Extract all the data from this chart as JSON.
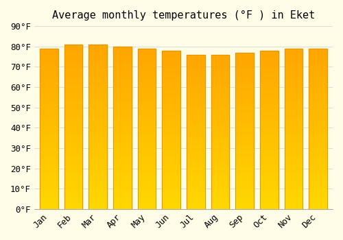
{
  "title": "Average monthly temperatures (°F ) in Eket",
  "months": [
    "Jan",
    "Feb",
    "Mar",
    "Apr",
    "May",
    "Jun",
    "Jul",
    "Aug",
    "Sep",
    "Oct",
    "Nov",
    "Dec"
  ],
  "values": [
    79,
    81,
    81,
    80,
    79,
    78,
    76,
    76,
    77,
    78,
    79,
    79
  ],
  "ylim": [
    0,
    90
  ],
  "yticks": [
    0,
    10,
    20,
    30,
    40,
    50,
    60,
    70,
    80,
    90
  ],
  "ytick_labels": [
    "0°F",
    "10°F",
    "20°F",
    "30°F",
    "40°F",
    "50°F",
    "60°F",
    "70°F",
    "80°F",
    "90°F"
  ],
  "bar_color_top": "#FFA500",
  "bar_color_bottom": "#FFD700",
  "bar_edge_color": "#E69500",
  "background_color": "#FFFDE7",
  "grid_color": "#DDDDDD",
  "title_fontsize": 11,
  "tick_fontsize": 9,
  "font_family": "monospace"
}
